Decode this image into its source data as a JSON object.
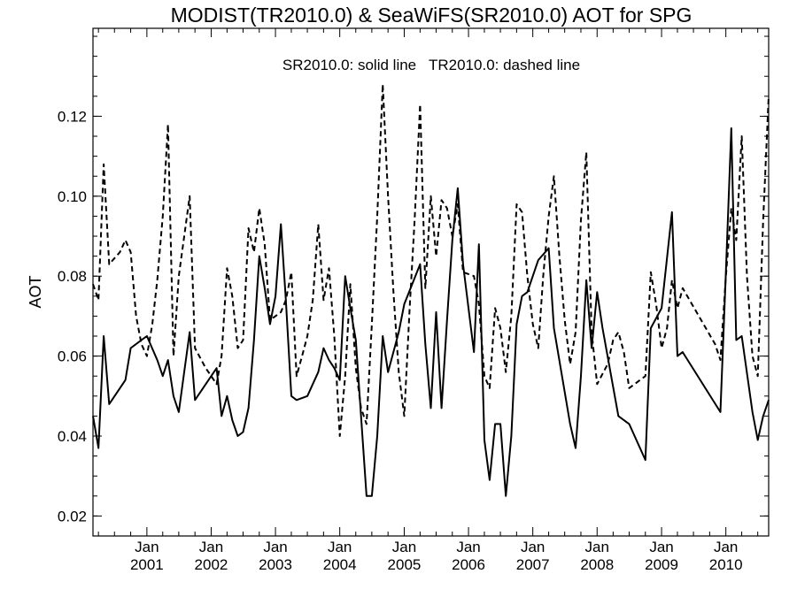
{
  "chart_data": {
    "type": "line",
    "title": "MODIST(TR2010.0) & SeaWiFS(SR2010.0)  AOT for SPG",
    "annotation": "SR2010.0: solid line   TR2010.0: dashed line",
    "ylabel": "AOT",
    "xlabel": "",
    "xlim": [
      "2000-03-01",
      "2010-09-01"
    ],
    "ylim": [
      0.015,
      0.142
    ],
    "y_ticks": [
      "0.02",
      "0.04",
      "0.06",
      "0.08",
      "0.10",
      "0.12"
    ],
    "x_ticks": [
      {
        "month": "Jan",
        "year": "2001",
        "date": "2001-01-01"
      },
      {
        "month": "Jan",
        "year": "2002",
        "date": "2002-01-01"
      },
      {
        "month": "Jan",
        "year": "2003",
        "date": "2003-01-01"
      },
      {
        "month": "Jan",
        "year": "2004",
        "date": "2004-01-01"
      },
      {
        "month": "Jan",
        "year": "2005",
        "date": "2005-01-01"
      },
      {
        "month": "Jan",
        "year": "2006",
        "date": "2006-01-01"
      },
      {
        "month": "Jan",
        "year": "2007",
        "date": "2007-01-01"
      },
      {
        "month": "Jan",
        "year": "2008",
        "date": "2008-01-01"
      },
      {
        "month": "Jan",
        "year": "2009",
        "date": "2009-01-01"
      },
      {
        "month": "Jan",
        "year": "2010",
        "date": "2010-01-01"
      }
    ],
    "grid": false,
    "series": [
      {
        "name": "SR2010.0",
        "style": "solid",
        "color": "#000000",
        "points": [
          [
            "2000-03-01",
            0.045
          ],
          [
            "2000-04-01",
            0.037
          ],
          [
            "2000-05-01",
            0.065
          ],
          [
            "2000-06-01",
            0.048
          ],
          [
            "2000-09-01",
            0.054
          ],
          [
            "2000-10-01",
            0.062
          ],
          [
            "2000-12-01",
            0.064
          ],
          [
            "2001-01-01",
            0.065
          ],
          [
            "2001-03-01",
            0.059
          ],
          [
            "2001-04-01",
            0.055
          ],
          [
            "2001-05-01",
            0.059
          ],
          [
            "2001-06-01",
            0.05
          ],
          [
            "2001-07-01",
            0.046
          ],
          [
            "2001-08-01",
            0.056
          ],
          [
            "2001-09-01",
            0.066
          ],
          [
            "2001-10-01",
            0.049
          ],
          [
            "2002-02-01",
            0.057
          ],
          [
            "2002-03-01",
            0.045
          ],
          [
            "2002-04-01",
            0.05
          ],
          [
            "2002-05-01",
            0.044
          ],
          [
            "2002-06-01",
            0.04
          ],
          [
            "2002-07-01",
            0.041
          ],
          [
            "2002-08-01",
            0.047
          ],
          [
            "2002-09-01",
            0.064
          ],
          [
            "2002-10-01",
            0.085
          ],
          [
            "2002-11-01",
            0.077
          ],
          [
            "2002-12-01",
            0.068
          ],
          [
            "2003-01-01",
            0.075
          ],
          [
            "2003-02-01",
            0.093
          ],
          [
            "2003-03-01",
            0.074
          ],
          [
            "2003-04-01",
            0.05
          ],
          [
            "2003-05-01",
            0.049
          ],
          [
            "2003-07-01",
            0.05
          ],
          [
            "2003-08-01",
            0.053
          ],
          [
            "2003-09-01",
            0.056
          ],
          [
            "2003-10-01",
            0.062
          ],
          [
            "2003-11-01",
            0.059
          ],
          [
            "2003-12-01",
            0.057
          ],
          [
            "2004-01-01",
            0.054
          ],
          [
            "2004-02-01",
            0.08
          ],
          [
            "2004-03-01",
            0.072
          ],
          [
            "2004-04-01",
            0.064
          ],
          [
            "2004-05-01",
            0.045
          ],
          [
            "2004-06-01",
            0.025
          ],
          [
            "2004-07-01",
            0.025
          ],
          [
            "2004-08-01",
            0.04
          ],
          [
            "2004-09-01",
            0.065
          ],
          [
            "2004-10-01",
            0.056
          ],
          [
            "2004-12-01",
            0.066
          ],
          [
            "2005-01-01",
            0.073
          ],
          [
            "2005-04-01",
            0.083
          ],
          [
            "2005-05-01",
            0.063
          ],
          [
            "2005-06-01",
            0.047
          ],
          [
            "2005-07-01",
            0.071
          ],
          [
            "2005-08-01",
            0.047
          ],
          [
            "2005-09-01",
            0.069
          ],
          [
            "2005-10-01",
            0.089
          ],
          [
            "2005-11-01",
            0.102
          ],
          [
            "2005-12-01",
            0.083
          ],
          [
            "2006-02-01",
            0.061
          ],
          [
            "2006-03-01",
            0.088
          ],
          [
            "2006-04-01",
            0.039
          ],
          [
            "2006-05-01",
            0.029
          ],
          [
            "2006-06-01",
            0.043
          ],
          [
            "2006-07-01",
            0.043
          ],
          [
            "2006-08-01",
            0.025
          ],
          [
            "2006-09-01",
            0.04
          ],
          [
            "2006-10-01",
            0.068
          ],
          [
            "2006-11-01",
            0.075
          ],
          [
            "2006-12-01",
            0.076
          ],
          [
            "2007-02-01",
            0.084
          ],
          [
            "2007-04-01",
            0.087
          ],
          [
            "2007-05-01",
            0.067
          ],
          [
            "2007-08-01",
            0.043
          ],
          [
            "2007-09-01",
            0.037
          ],
          [
            "2007-10-01",
            0.055
          ],
          [
            "2007-11-01",
            0.079
          ],
          [
            "2007-12-01",
            0.062
          ],
          [
            "2008-01-01",
            0.076
          ],
          [
            "2008-02-01",
            0.067
          ],
          [
            "2008-05-01",
            0.045
          ],
          [
            "2008-07-01",
            0.043
          ],
          [
            "2008-10-01",
            0.034
          ],
          [
            "2008-11-01",
            0.067
          ],
          [
            "2009-01-01",
            0.072
          ],
          [
            "2009-03-01",
            0.096
          ],
          [
            "2009-04-01",
            0.06
          ],
          [
            "2009-05-01",
            0.061
          ],
          [
            "2009-12-01",
            0.046
          ],
          [
            "2010-01-01",
            0.081
          ],
          [
            "2010-02-01",
            0.117
          ],
          [
            "2010-03-01",
            0.064
          ],
          [
            "2010-04-01",
            0.065
          ],
          [
            "2010-06-01",
            0.046
          ],
          [
            "2010-07-01",
            0.039
          ],
          [
            "2010-08-01",
            0.045
          ],
          [
            "2010-09-01",
            0.049
          ]
        ]
      },
      {
        "name": "TR2010.0",
        "style": "dashed",
        "color": "#000000",
        "points": [
          [
            "2000-03-01",
            0.078
          ],
          [
            "2000-04-01",
            0.074
          ],
          [
            "2000-05-01",
            0.108
          ],
          [
            "2000-06-01",
            0.083
          ],
          [
            "2000-08-01",
            0.086
          ],
          [
            "2000-09-01",
            0.089
          ],
          [
            "2000-10-01",
            0.086
          ],
          [
            "2000-11-01",
            0.07
          ],
          [
            "2000-12-01",
            0.063
          ],
          [
            "2001-01-01",
            0.06
          ],
          [
            "2001-02-01",
            0.068
          ],
          [
            "2001-03-01",
            0.079
          ],
          [
            "2001-04-01",
            0.095
          ],
          [
            "2001-05-01",
            0.118
          ],
          [
            "2001-06-01",
            0.06
          ],
          [
            "2001-07-01",
            0.08
          ],
          [
            "2001-09-01",
            0.1
          ],
          [
            "2001-10-01",
            0.062
          ],
          [
            "2001-12-01",
            0.057
          ],
          [
            "2002-01-01",
            0.055
          ],
          [
            "2002-02-01",
            0.053
          ],
          [
            "2002-03-01",
            0.06
          ],
          [
            "2002-04-01",
            0.082
          ],
          [
            "2002-05-01",
            0.075
          ],
          [
            "2002-06-01",
            0.062
          ],
          [
            "2002-07-01",
            0.064
          ],
          [
            "2002-08-01",
            0.092
          ],
          [
            "2002-09-01",
            0.086
          ],
          [
            "2002-10-01",
            0.097
          ],
          [
            "2002-11-01",
            0.088
          ],
          [
            "2002-12-01",
            0.069
          ],
          [
            "2003-02-01",
            0.071
          ],
          [
            "2003-03-01",
            0.074
          ],
          [
            "2003-04-01",
            0.081
          ],
          [
            "2003-05-01",
            0.055
          ],
          [
            "2003-06-01",
            0.06
          ],
          [
            "2003-07-01",
            0.065
          ],
          [
            "2003-08-01",
            0.074
          ],
          [
            "2003-09-01",
            0.093
          ],
          [
            "2003-10-01",
            0.074
          ],
          [
            "2003-11-01",
            0.082
          ],
          [
            "2003-12-01",
            0.065
          ],
          [
            "2004-01-01",
            0.04
          ],
          [
            "2004-02-01",
            0.055
          ],
          [
            "2004-03-01",
            0.078
          ],
          [
            "2004-04-01",
            0.057
          ],
          [
            "2004-05-01",
            0.047
          ],
          [
            "2004-06-01",
            0.043
          ],
          [
            "2004-07-01",
            0.068
          ],
          [
            "2004-08-01",
            0.095
          ],
          [
            "2004-09-01",
            0.128
          ],
          [
            "2004-10-01",
            0.1
          ],
          [
            "2004-11-01",
            0.076
          ],
          [
            "2004-12-01",
            0.056
          ],
          [
            "2005-01-01",
            0.045
          ],
          [
            "2005-02-01",
            0.072
          ],
          [
            "2005-03-01",
            0.094
          ],
          [
            "2005-04-01",
            0.123
          ],
          [
            "2005-05-01",
            0.077
          ],
          [
            "2005-06-01",
            0.1
          ],
          [
            "2005-07-01",
            0.085
          ],
          [
            "2005-08-01",
            0.099
          ],
          [
            "2005-09-01",
            0.097
          ],
          [
            "2005-10-01",
            0.09
          ],
          [
            "2005-11-01",
            0.098
          ],
          [
            "2005-12-01",
            0.081
          ],
          [
            "2006-02-01",
            0.08
          ],
          [
            "2006-03-01",
            0.073
          ],
          [
            "2006-04-01",
            0.055
          ],
          [
            "2006-05-01",
            0.052
          ],
          [
            "2006-06-01",
            0.072
          ],
          [
            "2006-07-01",
            0.067
          ],
          [
            "2006-08-01",
            0.056
          ],
          [
            "2006-09-01",
            0.07
          ],
          [
            "2006-10-01",
            0.098
          ],
          [
            "2006-11-01",
            0.096
          ],
          [
            "2006-12-01",
            0.08
          ],
          [
            "2007-01-01",
            0.068
          ],
          [
            "2007-02-01",
            0.062
          ],
          [
            "2007-03-01",
            0.08
          ],
          [
            "2007-04-01",
            0.095
          ],
          [
            "2007-05-01",
            0.105
          ],
          [
            "2007-06-01",
            0.085
          ],
          [
            "2007-07-01",
            0.069
          ],
          [
            "2007-08-01",
            0.058
          ],
          [
            "2007-09-01",
            0.066
          ],
          [
            "2007-10-01",
            0.094
          ],
          [
            "2007-11-01",
            0.111
          ],
          [
            "2007-12-01",
            0.066
          ],
          [
            "2008-01-01",
            0.053
          ],
          [
            "2008-03-01",
            0.058
          ],
          [
            "2008-04-01",
            0.064
          ],
          [
            "2008-05-01",
            0.066
          ],
          [
            "2008-06-01",
            0.061
          ],
          [
            "2008-07-01",
            0.052
          ],
          [
            "2008-10-01",
            0.055
          ],
          [
            "2008-11-01",
            0.081
          ],
          [
            "2008-12-01",
            0.073
          ],
          [
            "2009-01-01",
            0.062
          ],
          [
            "2009-02-01",
            0.067
          ],
          [
            "2009-03-01",
            0.079
          ],
          [
            "2009-04-01",
            0.072
          ],
          [
            "2009-05-01",
            0.077
          ],
          [
            "2009-11-01",
            0.063
          ],
          [
            "2009-12-01",
            0.059
          ],
          [
            "2010-01-01",
            0.08
          ],
          [
            "2010-02-01",
            0.097
          ],
          [
            "2010-03-01",
            0.089
          ],
          [
            "2010-04-01",
            0.115
          ],
          [
            "2010-05-01",
            0.08
          ],
          [
            "2010-06-01",
            0.06
          ],
          [
            "2010-07-01",
            0.055
          ],
          [
            "2010-08-01",
            0.094
          ],
          [
            "2010-09-01",
            0.125
          ]
        ]
      }
    ]
  }
}
